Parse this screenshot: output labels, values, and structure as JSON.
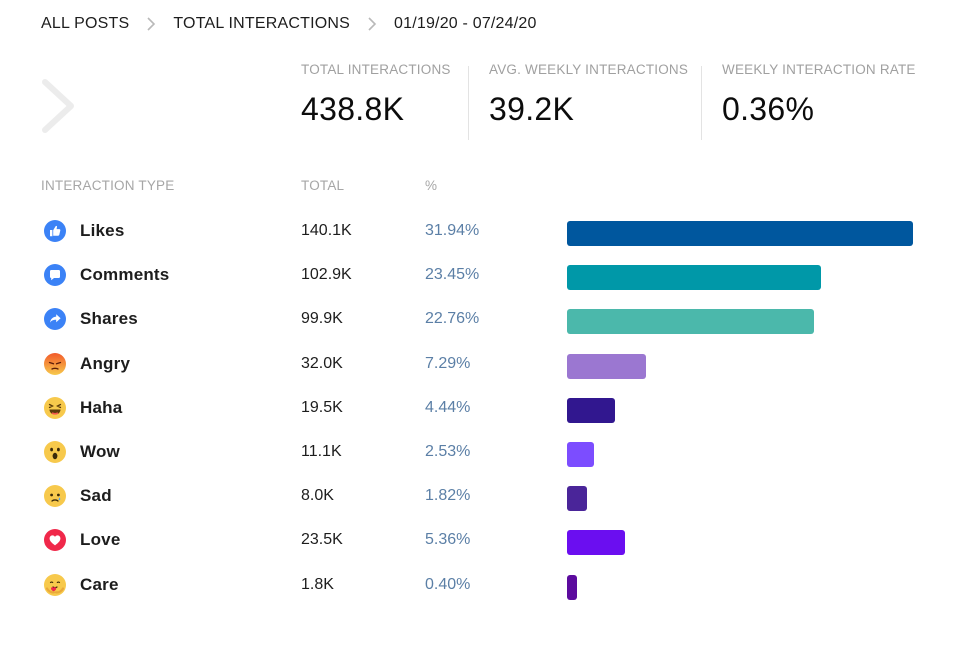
{
  "breadcrumb": {
    "all_posts": "ALL POSTS",
    "total_interactions": "TOTAL INTERACTIONS",
    "date_range": "01/19/20 - 07/24/20"
  },
  "metrics": [
    {
      "label": "TOTAL INTERACTIONS",
      "value": "438.8K"
    },
    {
      "label": "AVG. WEEKLY INTERACTIONS",
      "value": "39.2K"
    },
    {
      "label": "WEEKLY INTERACTION RATE",
      "value": "0.36%"
    }
  ],
  "table": {
    "col_type": "INTERACTION TYPE",
    "col_total": "TOTAL",
    "col_pct": "%"
  },
  "chart_data": {
    "type": "bar",
    "orientation": "horizontal",
    "categories": [
      "Likes",
      "Comments",
      "Shares",
      "Angry",
      "Haha",
      "Wow",
      "Sad",
      "Love",
      "Care"
    ],
    "totals": [
      "140.1K",
      "102.9K",
      "99.9K",
      "32.0K",
      "19.5K",
      "11.1K",
      "8.0K",
      "23.5K",
      "1.8K"
    ],
    "percent_labels": [
      "31.94%",
      "23.45%",
      "22.76%",
      "7.29%",
      "4.44%",
      "2.53%",
      "1.82%",
      "5.36%",
      "0.40%"
    ],
    "values": [
      31.94,
      23.45,
      22.76,
      7.29,
      4.44,
      2.53,
      1.82,
      5.36,
      0.4
    ],
    "icons": [
      "like-icon",
      "comment-icon",
      "share-icon",
      "angry-icon",
      "haha-icon",
      "wow-icon",
      "sad-icon",
      "love-icon",
      "care-icon"
    ],
    "colors": [
      "#00579e",
      "#0098a8",
      "#4bb8ab",
      "#9b77d1",
      "#31178f",
      "#7c4dff",
      "#4a2599",
      "#6b0ef0",
      "#5c0b9e"
    ],
    "xlim": [
      0,
      31.94
    ]
  }
}
